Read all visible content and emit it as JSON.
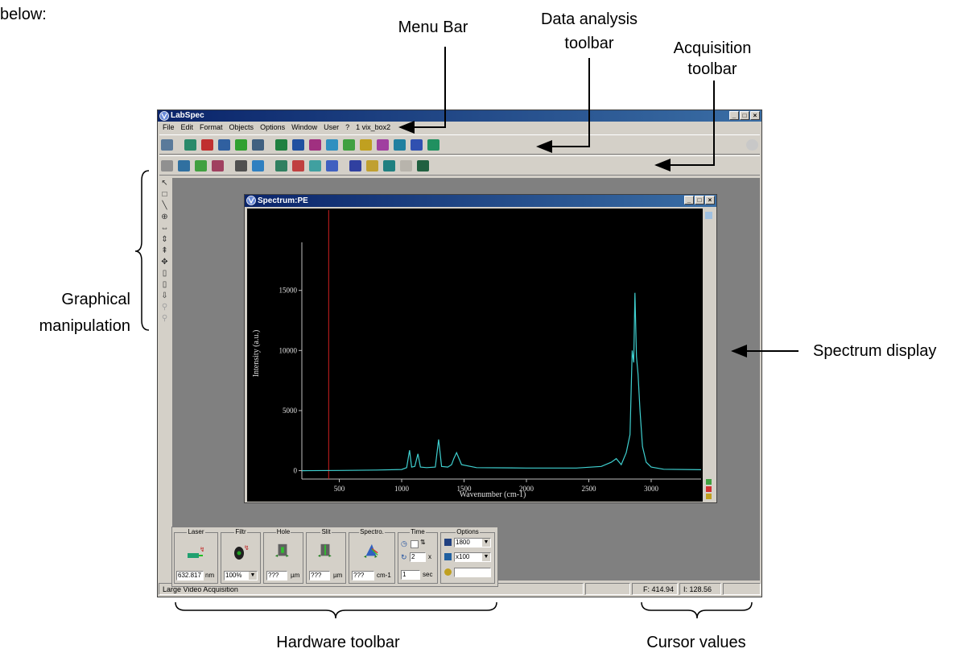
{
  "annotations": {
    "partial_top": "below:",
    "menu_bar": "Menu Bar",
    "data_analysis_l1": "Data analysis",
    "data_analysis_l2": "toolbar",
    "acquisition_l1": "Acquisition",
    "acquisition_l2": "toolbar",
    "graphical_l1": "Graphical",
    "graphical_l2": "manipulation",
    "spectrum_display": "Spectrum display",
    "hardware_toolbar": "Hardware toolbar",
    "cursor_values": "Cursor values"
  },
  "app": {
    "title": "LabSpec",
    "menu": [
      "File",
      "Edit",
      "Format",
      "Objects",
      "Options",
      "Window",
      "User",
      "?",
      "1 vix_box2"
    ],
    "status": {
      "message": "Large Video Acquisition",
      "cursor_f": "F: 414.94",
      "cursor_i": "I: 128.56"
    }
  },
  "spectrum_window": {
    "title": "Spectrum:PE"
  },
  "chart_data": {
    "type": "line",
    "xlabel": "Wavenumber (cm-1)",
    "ylabel": "Intensity (a.u.)",
    "xlim": [
      200,
      3400
    ],
    "ylim": [
      -700,
      19000
    ],
    "xticks": [
      500,
      1000,
      1500,
      2000,
      2500,
      3000
    ],
    "yticks": [
      0,
      5000,
      10000,
      15000
    ],
    "xtick_labels": [
      "500",
      "1000",
      "1500",
      "2000",
      "2500",
      "3000"
    ],
    "ytick_labels": [
      "0",
      "5000",
      "10000",
      "15000"
    ],
    "cursor_x": 415,
    "series": [
      {
        "color": "#3fd0d0",
        "x": [
          200,
          500,
          800,
          1000,
          1040,
          1063,
          1080,
          1105,
          1130,
          1150,
          1200,
          1270,
          1296,
          1320,
          1370,
          1400,
          1418,
          1440,
          1460,
          1480,
          1600,
          2000,
          2400,
          2600,
          2680,
          2720,
          2760,
          2800,
          2830,
          2848,
          2860,
          2870,
          2882,
          2895,
          2910,
          2930,
          2960,
          3000,
          3100,
          3400
        ],
        "y": [
          0,
          20,
          50,
          100,
          250,
          1700,
          300,
          350,
          1400,
          300,
          250,
          300,
          2600,
          350,
          300,
          500,
          1000,
          1500,
          1000,
          500,
          250,
          220,
          220,
          350,
          700,
          1000,
          500,
          1500,
          3000,
          10000,
          9000,
          14800,
          9500,
          8000,
          5000,
          2000,
          700,
          300,
          120,
          80
        ]
      }
    ]
  },
  "hardware": {
    "laser": {
      "label": "Laser",
      "value": "632.817",
      "unit": "nm"
    },
    "filter": {
      "label": "Filtr",
      "value": "100%"
    },
    "hole": {
      "label": "Hole",
      "value": "???",
      "unit": "µm"
    },
    "slit": {
      "label": "Slit",
      "value": "???",
      "unit": "µm"
    },
    "spectro": {
      "label": "Spectro.",
      "value": "???",
      "unit": "cm-1"
    },
    "time": {
      "label": "Time",
      "accumulations": "2",
      "acc_unit": "x",
      "seconds": "1",
      "sec_unit": "sec"
    },
    "options": {
      "label": "Options",
      "grating": "1800",
      "objective": "x100"
    }
  }
}
